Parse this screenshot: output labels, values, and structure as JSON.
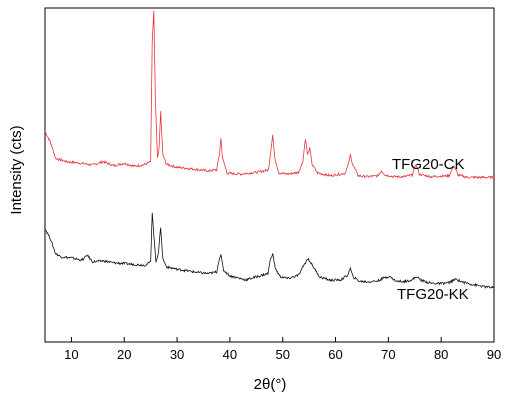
{
  "chart_data": {
    "type": "line",
    "title": "",
    "xlabel": "2θ(°)",
    "ylabel": "Intensity (cts)",
    "xlim": [
      5,
      90
    ],
    "xticks": [
      10,
      20,
      30,
      40,
      50,
      60,
      70,
      80,
      90
    ],
    "y_units": "arbitrary (counts, no tick labels shown)",
    "ylim": [
      0,
      100
    ],
    "grid": false,
    "legend": "none (series labeled directly on plot)",
    "series": [
      {
        "name": "TFG20-CK",
        "color": "#e8353a",
        "points": [
          [
            5,
            63
          ],
          [
            6,
            60
          ],
          [
            7,
            55
          ],
          [
            9,
            54
          ],
          [
            12,
            53.5
          ],
          [
            14,
            53
          ],
          [
            16,
            54
          ],
          [
            18,
            52.8
          ],
          [
            20,
            53.5
          ],
          [
            22,
            52.6
          ],
          [
            24,
            53.2
          ],
          [
            25.0,
            54
          ],
          [
            25.3,
            90
          ],
          [
            25.6,
            99
          ],
          [
            25.9,
            72
          ],
          [
            26.3,
            55
          ],
          [
            26.6,
            58
          ],
          [
            26.9,
            69
          ],
          [
            27.3,
            56
          ],
          [
            28,
            53.2
          ],
          [
            30,
            52.3
          ],
          [
            32,
            52
          ],
          [
            34,
            51.6
          ],
          [
            36,
            51.2
          ],
          [
            37.5,
            51.6
          ],
          [
            38.0,
            56
          ],
          [
            38.3,
            61
          ],
          [
            38.6,
            55
          ],
          [
            39.5,
            50.5
          ],
          [
            42,
            50.3
          ],
          [
            45,
            50.8
          ],
          [
            47.3,
            51.5
          ],
          [
            47.8,
            58
          ],
          [
            48.1,
            62
          ],
          [
            48.5,
            55
          ],
          [
            49.3,
            50.6
          ],
          [
            51,
            50.3
          ],
          [
            53,
            50.8
          ],
          [
            53.8,
            54
          ],
          [
            54.3,
            61
          ],
          [
            54.7,
            56
          ],
          [
            55.1,
            58
          ],
          [
            55.6,
            53
          ],
          [
            56.6,
            50.6
          ],
          [
            59,
            49.8
          ],
          [
            61.8,
            50.5
          ],
          [
            62.4,
            53
          ],
          [
            62.8,
            56
          ],
          [
            63.3,
            53
          ],
          [
            64.3,
            49.8
          ],
          [
            66,
            49.5
          ],
          [
            68.0,
            49.8
          ],
          [
            68.7,
            51.3
          ],
          [
            69.4,
            50
          ],
          [
            71,
            49.5
          ],
          [
            73,
            49.5
          ],
          [
            74.5,
            50
          ],
          [
            75.2,
            53.3
          ],
          [
            75.9,
            50.2
          ],
          [
            78,
            49.5
          ],
          [
            81.5,
            49.8
          ],
          [
            82.4,
            52.8
          ],
          [
            83.2,
            50
          ],
          [
            85,
            49.3
          ],
          [
            90,
            49.3
          ]
        ]
      },
      {
        "name": "TFG20-KK",
        "color": "#111111",
        "points": [
          [
            5,
            34
          ],
          [
            6,
            31
          ],
          [
            7,
            26.5
          ],
          [
            8,
            25.5
          ],
          [
            10,
            25.2
          ],
          [
            12,
            24.5
          ],
          [
            13,
            26
          ],
          [
            14,
            24
          ],
          [
            16,
            24.3
          ],
          [
            18,
            23.7
          ],
          [
            20,
            23.5
          ],
          [
            22,
            23.2
          ],
          [
            24,
            23
          ],
          [
            25.0,
            24
          ],
          [
            25.3,
            39
          ],
          [
            25.6,
            32
          ],
          [
            26.0,
            24
          ],
          [
            26.5,
            27
          ],
          [
            26.9,
            34.5
          ],
          [
            27.3,
            25
          ],
          [
            28,
            22.5
          ],
          [
            30,
            21.8
          ],
          [
            32,
            21.3
          ],
          [
            34,
            20.8
          ],
          [
            36,
            20.5
          ],
          [
            37.5,
            21
          ],
          [
            38.0,
            25
          ],
          [
            38.3,
            26
          ],
          [
            38.8,
            21.5
          ],
          [
            40,
            19.8
          ],
          [
            42,
            19
          ],
          [
            43,
            18.6
          ],
          [
            45,
            19.5
          ],
          [
            47.2,
            20.5
          ],
          [
            47.7,
            25
          ],
          [
            48.1,
            26.5
          ],
          [
            48.6,
            22
          ],
          [
            49.5,
            19.6
          ],
          [
            51,
            19
          ],
          [
            53,
            20
          ],
          [
            54.2,
            23.5
          ],
          [
            54.8,
            25
          ],
          [
            55.6,
            23
          ],
          [
            57,
            19.5
          ],
          [
            59,
            18.5
          ],
          [
            61,
            18.6
          ],
          [
            62.3,
            20
          ],
          [
            62.8,
            22
          ],
          [
            63.3,
            19.5
          ],
          [
            64.5,
            18.2
          ],
          [
            66,
            18
          ],
          [
            68,
            18.3
          ],
          [
            69.3,
            19.3
          ],
          [
            70.2,
            19.6
          ],
          [
            71.5,
            18.2
          ],
          [
            73,
            18.1
          ],
          [
            74.5,
            18.6
          ],
          [
            75.3,
            19.6
          ],
          [
            76.2,
            18.5
          ],
          [
            78,
            17.6
          ],
          [
            80,
            17.5
          ],
          [
            81.5,
            17.8
          ],
          [
            82.8,
            18.8
          ],
          [
            84,
            18
          ],
          [
            86,
            17.2
          ],
          [
            88,
            16.6
          ],
          [
            90,
            16.2
          ]
        ]
      }
    ]
  }
}
